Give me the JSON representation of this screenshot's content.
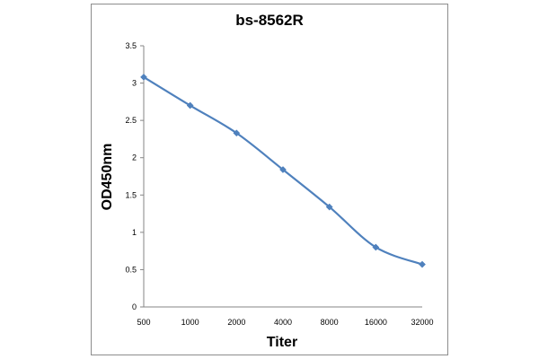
{
  "chart_data": {
    "type": "line",
    "title": "bs-8562R",
    "xlabel": "Titer",
    "ylabel": "OD450nm",
    "x_categories": [
      "500",
      "1000",
      "2000",
      "4000",
      "8000",
      "16000",
      "32000"
    ],
    "y_ticks": [
      "0",
      "0.5",
      "1",
      "1.5",
      "2",
      "2.5",
      "3",
      "3.5"
    ],
    "ylim": [
      0,
      3.5
    ],
    "grid": false,
    "legend": "none",
    "series": [
      {
        "values": [
          3.08,
          2.7,
          2.33,
          1.84,
          1.34,
          0.8,
          0.57
        ],
        "color": "#4f81bd",
        "marker": "diamond",
        "smooth": true
      }
    ]
  }
}
